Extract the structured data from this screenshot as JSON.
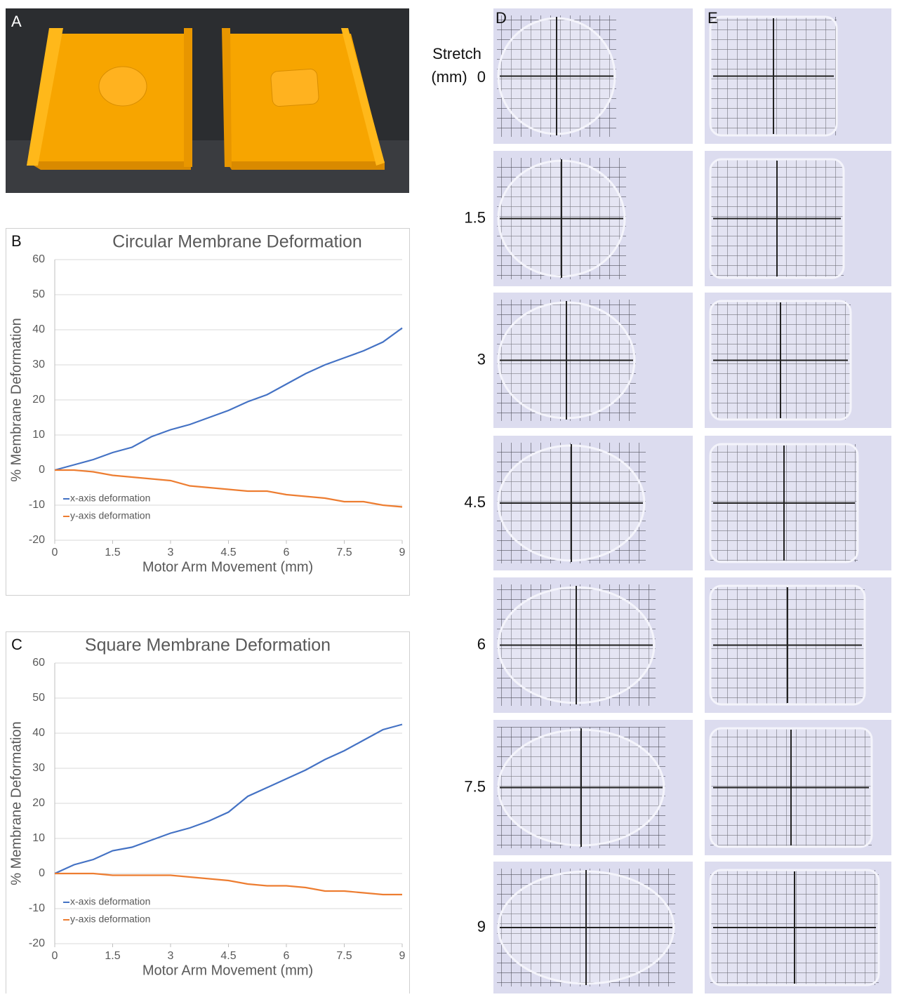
{
  "figure": {
    "panel_a": "A",
    "panel_d": "D",
    "panel_e": "E",
    "stretch_label": "Stretch",
    "stretch_unit": "(mm)",
    "stretch_values": [
      "0",
      "1.5",
      "3",
      "4.5",
      "6",
      "7.5",
      "9"
    ]
  },
  "chart_data": [
    {
      "type": "line",
      "label": "B",
      "title": "Circular Membrane Deformation",
      "x_label": "Motor Arm Movement (mm)",
      "y_label": "% Membrane Deformation",
      "x": [
        0,
        0.5,
        1,
        1.5,
        2,
        2.5,
        3,
        3.5,
        4,
        4.5,
        5,
        5.5,
        6,
        6.5,
        7,
        7.5,
        8,
        8.5,
        9
      ],
      "series": [
        {
          "name": "x-axis deformation",
          "color": "#4472c4",
          "values": [
            0,
            1.5,
            3,
            5,
            6.5,
            9.5,
            11.5,
            13,
            15,
            17,
            19.5,
            21.5,
            24.5,
            27.5,
            30,
            32,
            34,
            36.5,
            40.5
          ]
        },
        {
          "name": "y-axis deformation",
          "color": "#ed7d31",
          "values": [
            0,
            0,
            -0.5,
            -1.5,
            -2,
            -2.5,
            -3,
            -4.5,
            -5,
            -5.5,
            -6,
            -6,
            -7,
            -7.5,
            -8,
            -9,
            -9,
            -10,
            -10.5
          ]
        }
      ],
      "xlim": [
        0,
        9
      ],
      "xticks": [
        0,
        1.5,
        3,
        4.5,
        6,
        7.5,
        9
      ],
      "ylim": [
        -20,
        60
      ],
      "yticks": [
        -20,
        -10,
        0,
        10,
        20,
        30,
        40,
        50,
        60
      ],
      "grid": true
    },
    {
      "type": "line",
      "label": "C",
      "title": "Square Membrane Deformation",
      "x_label": "Motor Arm Movement (mm)",
      "y_label": "% Membrane Deformation",
      "x": [
        0,
        0.5,
        1,
        1.5,
        2,
        2.5,
        3,
        3.5,
        4,
        4.5,
        5,
        5.5,
        6,
        6.5,
        7,
        7.5,
        8,
        8.5,
        9
      ],
      "series": [
        {
          "name": "x-axis deformation",
          "color": "#4472c4",
          "values": [
            0,
            2.5,
            4,
            6.5,
            7.5,
            9.5,
            11.5,
            13,
            15,
            17.5,
            22,
            24.5,
            27,
            29.5,
            32.5,
            35,
            38,
            41,
            42.5
          ]
        },
        {
          "name": "y-axis deformation",
          "color": "#ed7d31",
          "values": [
            0,
            0,
            0,
            -0.5,
            -0.5,
            -0.5,
            -0.5,
            -1,
            -1.5,
            -2,
            -3,
            -3.5,
            -3.5,
            -4,
            -5,
            -5,
            -5.5,
            -6,
            -6
          ]
        }
      ],
      "xlim": [
        0,
        9
      ],
      "xticks": [
        0,
        1.5,
        3,
        4.5,
        6,
        7.5,
        9
      ],
      "ylim": [
        -20,
        60
      ],
      "yticks": [
        -20,
        -10,
        0,
        10,
        20,
        30,
        40,
        50,
        60
      ],
      "grid": true
    }
  ]
}
